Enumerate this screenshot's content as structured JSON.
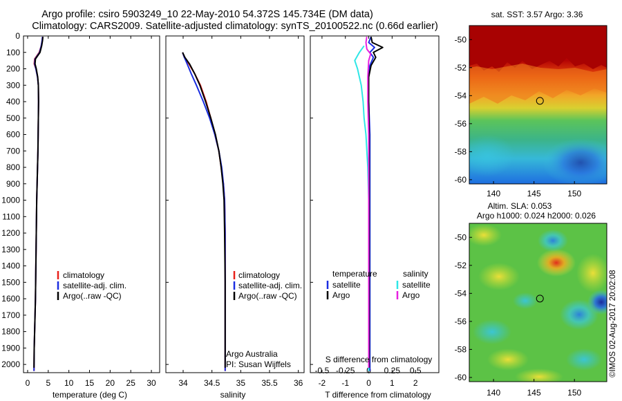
{
  "header": {
    "title_line1": "Argo profile: csiro 5903249_10 22-May-2010 54.372S 145.734E (DM data)",
    "title_line2": "Climatology: CARS2009. Satellite-adjusted climatology: synTS_20100522.nc (0.66d earlier)"
  },
  "watermark": "©IMOS 02-Aug-2017 20:02:08",
  "colors": {
    "red": "#e8201a",
    "blue": "#1a2de0",
    "black": "#000000",
    "cyan": "#2ee6e6",
    "magenta": "#e620e0"
  },
  "chart_data": [
    {
      "id": "temperature",
      "type": "line",
      "xlabel": "temperature (deg C)",
      "ylabel": "",
      "xlim": [
        -1,
        32
      ],
      "ylim": [
        2050,
        0
      ],
      "x_ticks": [
        0,
        5,
        10,
        15,
        20,
        25,
        30
      ],
      "x_tick_labels": [
        "0",
        "5",
        "10",
        "15",
        "20",
        "25",
        "30"
      ],
      "y_ticks": [
        0,
        100,
        200,
        300,
        400,
        500,
        600,
        700,
        800,
        900,
        1000,
        1100,
        1200,
        1300,
        1400,
        1500,
        1600,
        1700,
        1800,
        1900,
        2000
      ],
      "y_tick_labels": [
        "0",
        "100",
        "200",
        "300",
        "400",
        "500",
        "600",
        "700",
        "800",
        "900",
        "1000",
        "1100",
        "1200",
        "1300",
        "1400",
        "1500",
        "1600",
        "1700",
        "1800",
        "1900",
        "2000"
      ],
      "legend": {
        "position": "lower-center",
        "entries": [
          "climatology",
          "satellite-adj. clim.",
          "Argo(..raw -QC)"
        ]
      },
      "series": [
        {
          "name": "climatology",
          "color": "red",
          "x": [
            3.6,
            3.5,
            3.3,
            2.8,
            1.7,
            1.6,
            2.0,
            2.4,
            2.6,
            2.65,
            2.6,
            2.55,
            2.5,
            2.4,
            2.3,
            2.2,
            2.1,
            2.0,
            1.9,
            1.8,
            1.7,
            1.6,
            1.55
          ],
          "depth": [
            5,
            30,
            60,
            100,
            140,
            170,
            200,
            250,
            300,
            400,
            500,
            600,
            700,
            800,
            900,
            1000,
            1200,
            1400,
            1600,
            1700,
            1800,
            1900,
            2040
          ]
        },
        {
          "name": "satellite-adj. clim.",
          "color": "blue",
          "x": [
            3.6,
            3.5,
            3.3,
            2.9,
            1.8,
            1.7,
            2.0,
            2.4,
            2.6,
            2.65,
            2.6,
            2.55,
            2.5,
            2.4,
            2.3,
            2.2,
            2.1,
            2.0,
            1.9,
            1.8,
            1.7,
            1.6,
            1.55
          ],
          "depth": [
            5,
            30,
            60,
            100,
            140,
            170,
            200,
            250,
            300,
            400,
            500,
            600,
            700,
            800,
            900,
            1000,
            1200,
            1400,
            1600,
            1700,
            1800,
            1900,
            2040
          ]
        },
        {
          "name": "Argo(..raw -QC)",
          "color": "black",
          "x": [
            3.7,
            3.6,
            3.4,
            3.0,
            1.9,
            1.8,
            2.1,
            2.45,
            2.6,
            2.65,
            2.6,
            2.55,
            2.5,
            2.4,
            2.3,
            2.2,
            2.1,
            2.0,
            1.9,
            1.8,
            1.7,
            1.6,
            1.55
          ],
          "depth": [
            5,
            30,
            60,
            100,
            140,
            170,
            200,
            250,
            300,
            400,
            500,
            600,
            700,
            800,
            900,
            1000,
            1200,
            1400,
            1600,
            1700,
            1800,
            1900,
            2020
          ]
        }
      ]
    },
    {
      "id": "salinity",
      "type": "line",
      "xlabel": "salinity",
      "ylabel": "",
      "xlim": [
        33.7,
        36.1
      ],
      "ylim": [
        2050,
        0
      ],
      "x_ticks": [
        34,
        34.5,
        35,
        35.5,
        36
      ],
      "x_tick_labels": [
        "34",
        "34.5",
        "35",
        "35.5",
        "36"
      ],
      "legend": {
        "position": "lower-center",
        "entries": [
          "climatology",
          "satellite-adj. clim.",
          "Argo(..raw -QC)"
        ]
      },
      "annotation": {
        "line1": "Argo Australia",
        "line2": "PI: Susan Wijffels"
      },
      "series": [
        {
          "name": "climatology",
          "color": "red",
          "x": [
            33.99,
            34.02,
            34.1,
            34.2,
            34.3,
            34.4,
            34.48,
            34.55,
            34.62,
            34.66,
            34.7,
            34.72,
            34.73,
            34.73,
            34.73,
            34.73
          ],
          "depth": [
            100,
            130,
            170,
            230,
            300,
            400,
            500,
            600,
            700,
            800,
            900,
            1000,
            1200,
            1500,
            1800,
            2040
          ]
        },
        {
          "name": "satellite-adj. clim.",
          "color": "blue",
          "x": [
            33.99,
            34.02,
            34.07,
            34.14,
            34.23,
            34.35,
            34.46,
            34.55,
            34.62,
            34.67,
            34.7,
            34.72,
            34.73,
            34.73,
            34.73,
            34.73
          ],
          "depth": [
            100,
            130,
            170,
            230,
            300,
            400,
            500,
            600,
            700,
            800,
            900,
            1000,
            1200,
            1500,
            1800,
            2040
          ]
        },
        {
          "name": "Argo(..raw -QC)",
          "color": "black",
          "x": [
            33.99,
            34.03,
            34.11,
            34.2,
            34.29,
            34.39,
            34.48,
            34.56,
            34.62,
            34.66,
            34.69,
            34.71,
            34.72,
            34.73,
            34.73,
            34.73
          ],
          "depth": [
            100,
            130,
            170,
            230,
            300,
            400,
            500,
            600,
            700,
            800,
            900,
            1000,
            1200,
            1500,
            1800,
            2020
          ]
        }
      ]
    },
    {
      "id": "difference",
      "type": "line",
      "xlabel": "T difference from climatology",
      "xlabel_top": "S difference from climatology",
      "xlim": [
        -2.5,
        3
      ],
      "ylim": [
        2050,
        0
      ],
      "x_ticks": [
        -2,
        -1,
        0,
        1,
        2
      ],
      "x_tick_labels": [
        "-2",
        "-1",
        "0",
        "1",
        "2"
      ],
      "s_ticks": [
        -0.5,
        -0.25,
        0,
        0.25,
        0.5
      ],
      "s_tick_labels": [
        "-0.5",
        "-0.25",
        "0",
        "0.25",
        "0.5"
      ],
      "s_scale": 4,
      "legend": {
        "position": "lower-center",
        "temperature_heading": "temperature",
        "salinity_heading": "salinity",
        "temperature_entries": [
          "satellite",
          "Argo"
        ],
        "salinity_entries": [
          "satellite",
          "Argo"
        ]
      },
      "series": [
        {
          "name": "T satellite",
          "color": "blue",
          "x": [
            0.1,
            0.0,
            0.25,
            0.05,
            0.2,
            0.05,
            0.0,
            0.0,
            0.05,
            0.05,
            0.05,
            0.05,
            0.05,
            0.05,
            0.05,
            0.05
          ],
          "depth": [
            5,
            40,
            70,
            100,
            130,
            180,
            250,
            400,
            600,
            800,
            1000,
            1200,
            1400,
            1600,
            1800,
            2040
          ]
        },
        {
          "name": "T Argo",
          "color": "black",
          "x": [
            0.1,
            0.15,
            0.6,
            0.2,
            0.3,
            0.1,
            0.0,
            0.0,
            0.02,
            0.02,
            0.02,
            0.02,
            0.02,
            0.02,
            0.02,
            0.02
          ],
          "depth": [
            5,
            40,
            70,
            100,
            130,
            180,
            250,
            400,
            600,
            800,
            1000,
            1200,
            1400,
            1600,
            1800,
            2020
          ]
        },
        {
          "name": "S satellite",
          "color": "cyan",
          "x": [
            -0.05,
            -0.1,
            -0.15,
            -0.12,
            -0.08,
            -0.06,
            -0.05,
            -0.03,
            -0.02,
            -0.01,
            0,
            0,
            0,
            0,
            0,
            0
          ],
          "depth": [
            60,
            100,
            150,
            200,
            300,
            400,
            500,
            600,
            700,
            800,
            1000,
            1200,
            1400,
            1600,
            1800,
            2040
          ]
        },
        {
          "name": "S Argo",
          "color": "magenta",
          "x": [
            -0.02,
            -0.03,
            -0.02,
            0.02,
            0.0,
            -0.01,
            -0.01,
            0.0,
            0.0,
            0.0,
            0.0,
            0.0
          ],
          "depth": [
            5,
            40,
            80,
            110,
            150,
            250,
            400,
            600,
            800,
            1200,
            1600,
            2020
          ]
        }
      ]
    },
    {
      "id": "sst-map",
      "type": "heatmap",
      "title": "sat. SST: 3.57 Argo: 3.36",
      "xlim": [
        137,
        154
      ],
      "ylim": [
        -60.3,
        -49
      ],
      "x_ticks": [
        140,
        145,
        150
      ],
      "x_tick_labels": [
        "140",
        "145",
        "150"
      ],
      "y_ticks": [
        -50,
        -52,
        -54,
        -56,
        -58,
        -60
      ],
      "y_tick_labels": [
        "-50",
        "-52",
        "-54",
        "-56",
        "-58",
        "-60"
      ],
      "marker": {
        "lon": 145.734,
        "lat": -54.372
      }
    },
    {
      "id": "sla-map",
      "type": "heatmap",
      "title_line1": "Altim. SLA: 0.053",
      "title_line2": "Argo h1000: 0.024 h2000: 0.026",
      "xlim": [
        137,
        154
      ],
      "ylim": [
        -60.3,
        -49
      ],
      "x_ticks": [
        140,
        145,
        150
      ],
      "x_tick_labels": [
        "140",
        "145",
        "150"
      ],
      "y_ticks": [
        -50,
        -52,
        -54,
        -56,
        -58,
        -60
      ],
      "y_tick_labels": [
        "-50",
        "-52",
        "-54",
        "-56",
        "-58",
        "-60"
      ],
      "marker": {
        "lon": 145.734,
        "lat": -54.372
      }
    }
  ]
}
